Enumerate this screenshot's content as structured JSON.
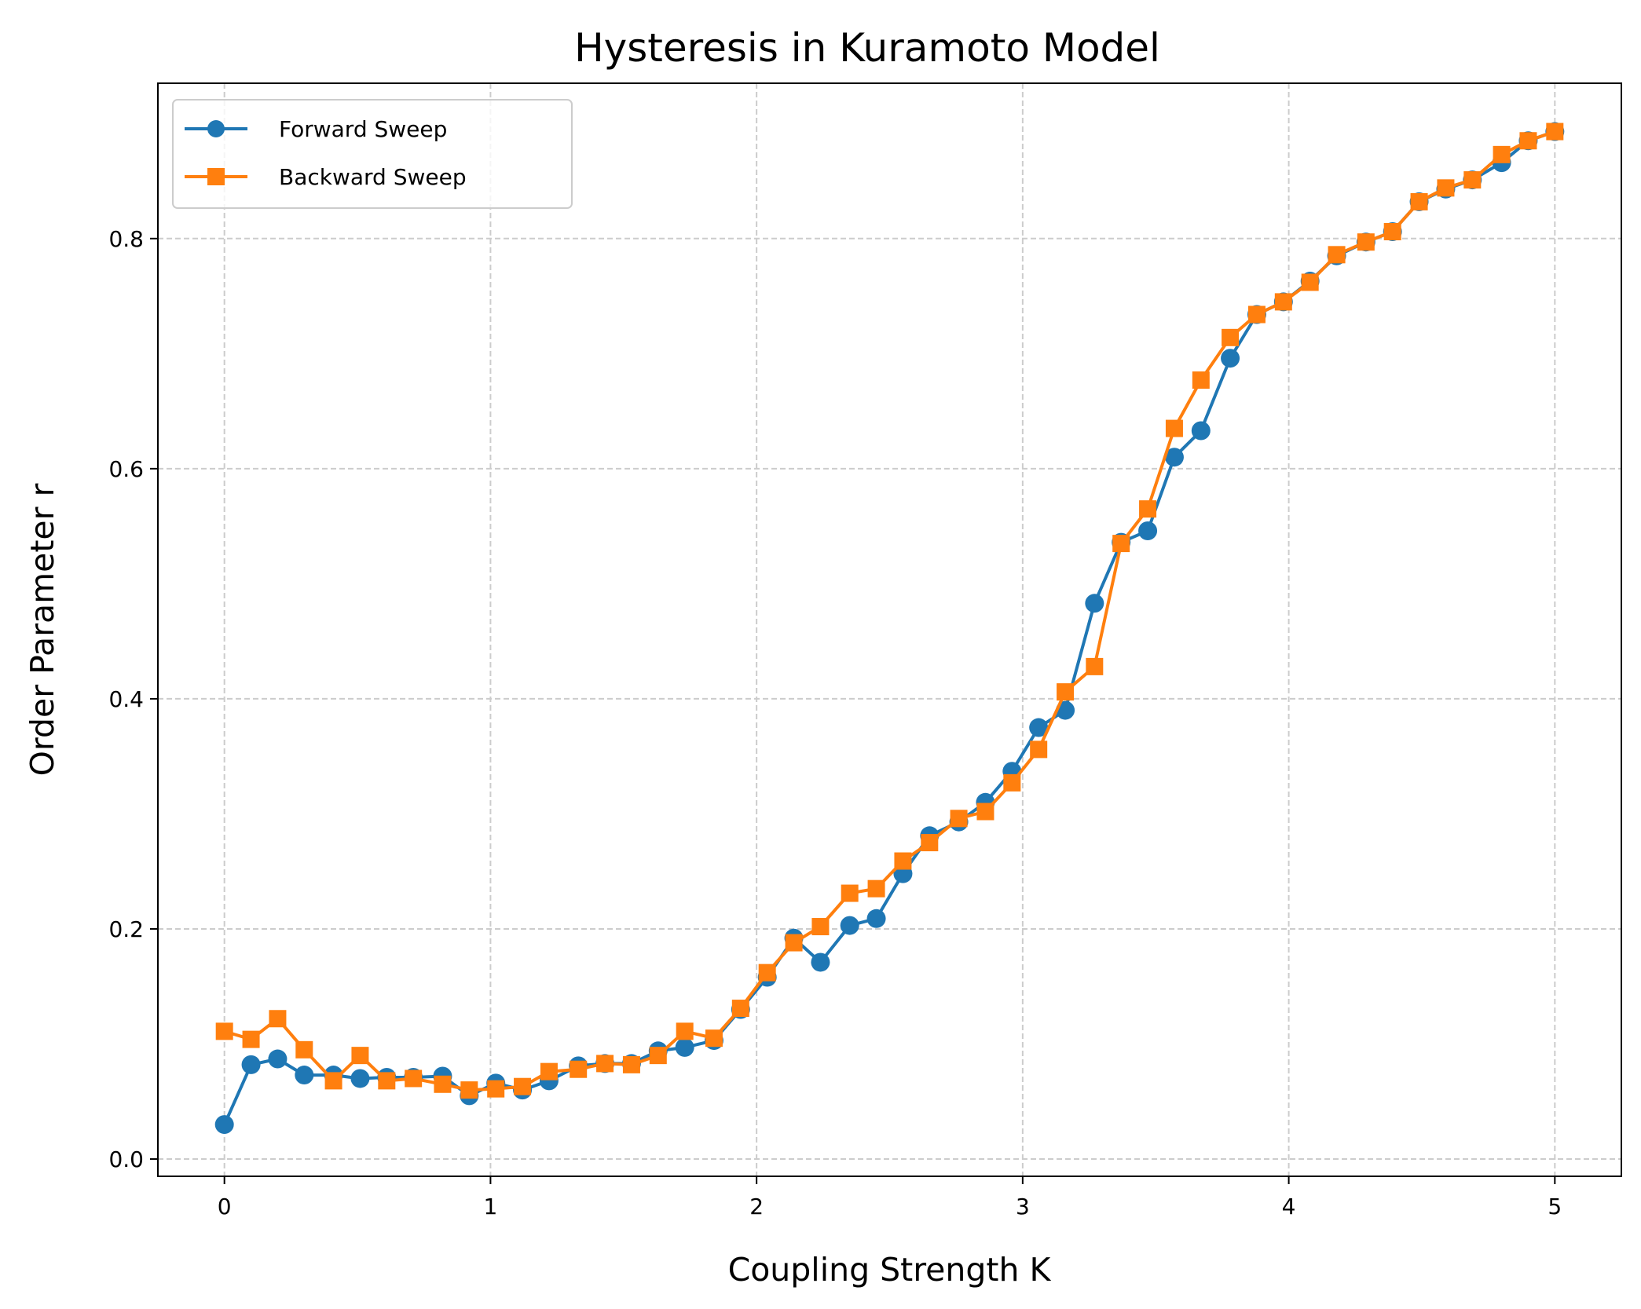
{
  "chart_data": {
    "type": "line",
    "title": "Hysteresis in Kuramoto Model",
    "xlabel": "Coupling Strength K",
    "ylabel": "Order Parameter r",
    "xlim": [
      -0.25,
      5.25
    ],
    "ylim": [
      -0.015,
      0.935
    ],
    "xticks": [
      0,
      1,
      2,
      3,
      4,
      5
    ],
    "xtick_labels": [
      "0",
      "1",
      "2",
      "3",
      "4",
      "5"
    ],
    "yticks": [
      0.0,
      0.2,
      0.4,
      0.6,
      0.8
    ],
    "ytick_labels": [
      "0.0",
      "0.2",
      "0.4",
      "0.6",
      "0.8"
    ],
    "grid": true,
    "legend_position": "top-left",
    "x": [
      0.0,
      0.1,
      0.2,
      0.3,
      0.41,
      0.51,
      0.61,
      0.71,
      0.82,
      0.92,
      1.02,
      1.12,
      1.22,
      1.33,
      1.43,
      1.53,
      1.63,
      1.73,
      1.84,
      1.94,
      2.04,
      2.14,
      2.24,
      2.35,
      2.45,
      2.55,
      2.65,
      2.76,
      2.86,
      2.96,
      3.06,
      3.16,
      3.27,
      3.37,
      3.47,
      3.57,
      3.67,
      3.78,
      3.88,
      3.98,
      4.08,
      4.18,
      4.29,
      4.39,
      4.49,
      4.59,
      4.69,
      4.8,
      4.9,
      5.0
    ],
    "series": [
      {
        "name": "Forward Sweep",
        "color": "#1f77b4",
        "marker": "circle",
        "values": [
          0.03,
          0.082,
          0.087,
          0.073,
          0.073,
          0.07,
          0.071,
          0.071,
          0.072,
          0.055,
          0.066,
          0.06,
          0.068,
          0.081,
          0.083,
          0.083,
          0.094,
          0.097,
          0.103,
          0.13,
          0.158,
          0.192,
          0.171,
          0.203,
          0.209,
          0.248,
          0.281,
          0.293,
          0.31,
          0.337,
          0.375,
          0.39,
          0.483,
          0.536,
          0.546,
          0.61,
          0.633,
          0.696,
          0.734,
          0.745,
          0.763,
          0.785,
          0.797,
          0.806,
          0.832,
          0.843,
          0.851,
          0.866,
          0.885,
          0.893
        ]
      },
      {
        "name": "Backward Sweep",
        "color": "#ff7f0e",
        "marker": "square",
        "values": [
          0.111,
          0.104,
          0.122,
          0.095,
          0.068,
          0.09,
          0.068,
          0.07,
          0.065,
          0.06,
          0.061,
          0.063,
          0.076,
          0.078,
          0.083,
          0.082,
          0.09,
          0.111,
          0.105,
          0.131,
          0.162,
          0.188,
          0.202,
          0.231,
          0.235,
          0.259,
          0.275,
          0.296,
          0.302,
          0.327,
          0.356,
          0.406,
          0.428,
          0.535,
          0.565,
          0.635,
          0.677,
          0.714,
          0.734,
          0.745,
          0.762,
          0.786,
          0.797,
          0.806,
          0.832,
          0.844,
          0.851,
          0.873,
          0.885,
          0.893
        ]
      }
    ]
  },
  "colors": {
    "axes_edge": "#000000",
    "grid": "#cccccc",
    "legend_edge": "#cccccc"
  }
}
